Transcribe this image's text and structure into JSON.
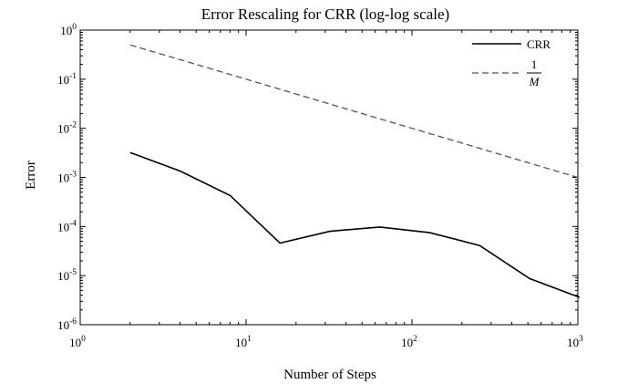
{
  "chart_data": {
    "type": "line",
    "title": "Error Rescaling for CRR (log-log scale)",
    "xlabel": "Number of Steps",
    "ylabel": "Error",
    "xscale": "log",
    "yscale": "log",
    "xlim": [
      1,
      1000
    ],
    "ylim": [
      1e-06,
      1
    ],
    "grid": false,
    "legend_position": "top-right",
    "x_tick_labels": [
      {
        "base": "10",
        "exp": "0",
        "value": 1
      },
      {
        "base": "10",
        "exp": "1",
        "value": 10
      },
      {
        "base": "10",
        "exp": "2",
        "value": 100
      },
      {
        "base": "10",
        "exp": "3",
        "value": 1000
      }
    ],
    "y_tick_labels": [
      {
        "base": "10",
        "exp": "0",
        "value": 1
      },
      {
        "base": "10",
        "exp": "-1",
        "value": 0.1
      },
      {
        "base": "10",
        "exp": "-2",
        "value": 0.01
      },
      {
        "base": "10",
        "exp": "-3",
        "value": 0.001
      },
      {
        "base": "10",
        "exp": "-4",
        "value": 0.0001
      },
      {
        "base": "10",
        "exp": "-5",
        "value": 1e-05
      },
      {
        "base": "10",
        "exp": "-6",
        "value": 1e-06
      }
    ],
    "series": [
      {
        "name": "CRR",
        "style": "solid",
        "color": "#000000",
        "x": [
          2,
          4,
          8,
          16,
          32,
          64,
          128,
          256,
          512,
          1024
        ],
        "y": [
          0.0032,
          0.00135,
          0.00043,
          4.6e-05,
          8e-05,
          9.75e-05,
          7.5e-05,
          4.1e-05,
          8.7e-06,
          3.6e-06
        ]
      },
      {
        "name_numerator": "1",
        "name_denominator": "M",
        "style": "dashed",
        "color": "#555555",
        "x": [
          2,
          4,
          8,
          16,
          32,
          64,
          128,
          256,
          512,
          1024
        ],
        "y": [
          0.5,
          0.25,
          0.125,
          0.0625,
          0.03125,
          0.015625,
          0.0078125,
          0.00390625,
          0.001953125,
          0.0009765625
        ]
      }
    ]
  }
}
